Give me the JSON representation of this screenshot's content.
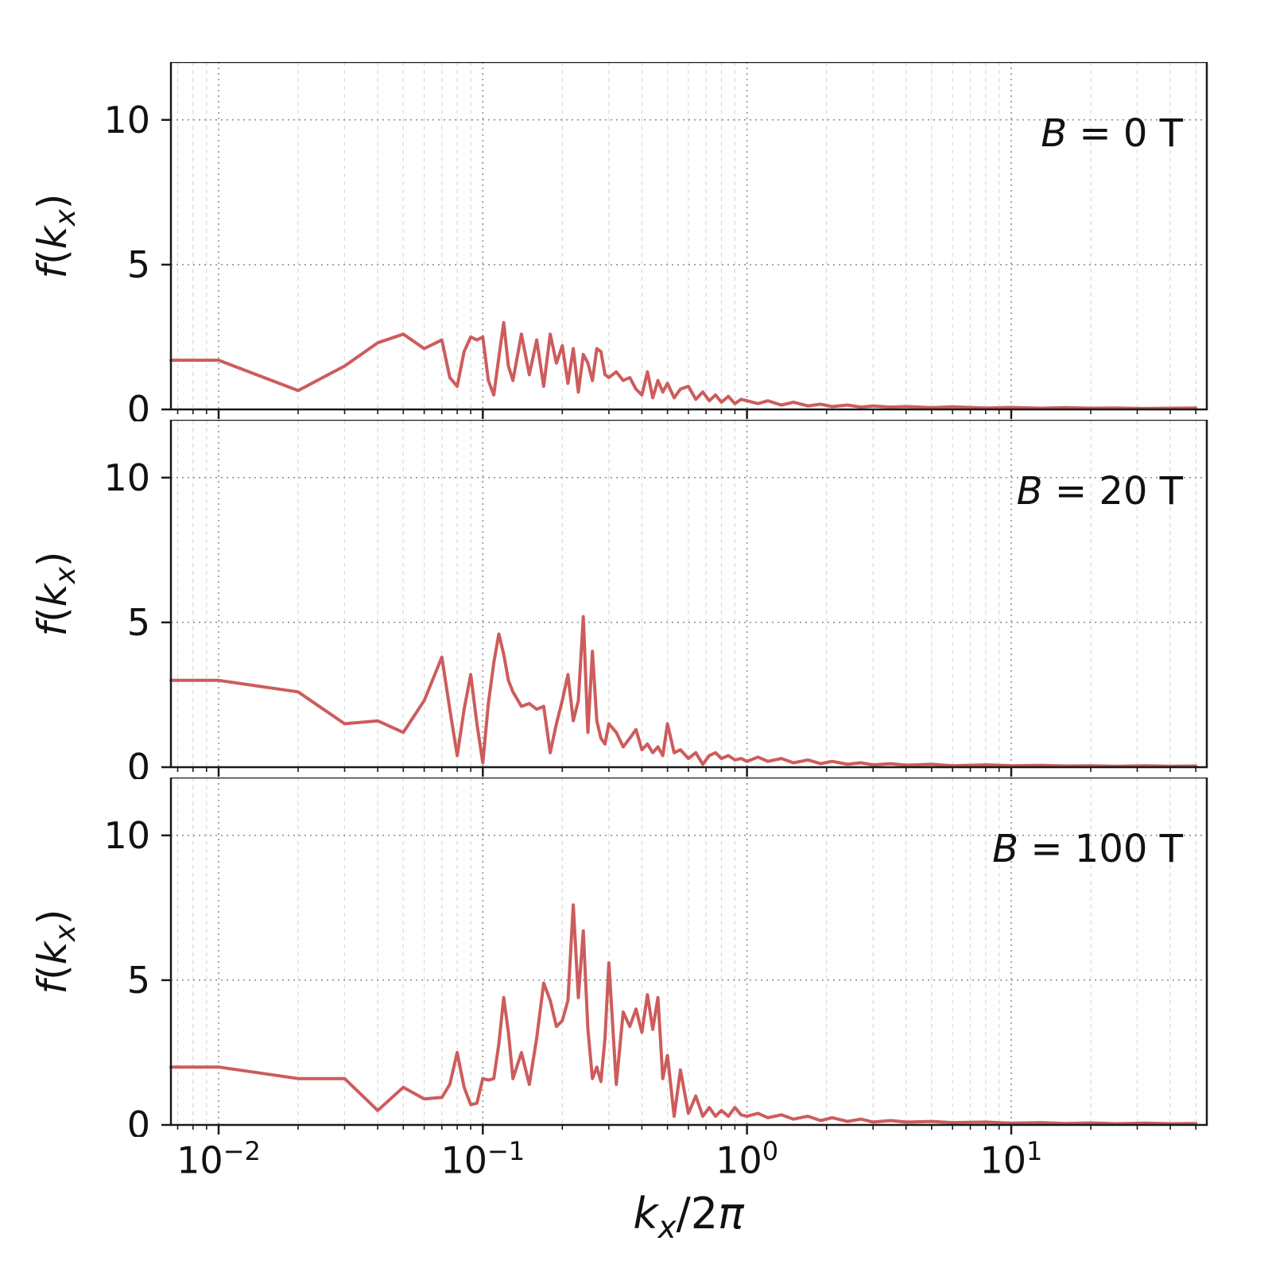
{
  "figure": {
    "background": "#ffffff"
  },
  "chart_data": {
    "type": "line",
    "title": "",
    "x_scale": "log",
    "xlim": [
      0.0066,
      55
    ],
    "ylim": [
      0,
      12
    ],
    "yticks": [
      0,
      5,
      10
    ],
    "xticks": [
      {
        "value": 0.01,
        "base": "10",
        "exp": "−2"
      },
      {
        "value": 0.1,
        "base": "10",
        "exp": "−1"
      },
      {
        "value": 1,
        "base": "10",
        "exp": "0"
      },
      {
        "value": 10,
        "base": "10",
        "exp": "1"
      }
    ],
    "xlabel_parts": {
      "k": "k",
      "sub": "x",
      "slash": "/2",
      "pi": "π"
    },
    "ylabel_parts": {
      "f": "f",
      "open": "(",
      "k": "k",
      "sub": "x",
      "close": ")"
    },
    "line_color": "#CD5C5C",
    "grid": {
      "major_color": "#8a8a8a",
      "minor_color": "#d9d9d9"
    },
    "legend": "none",
    "x": [
      0.0066,
      0.01,
      0.02,
      0.03,
      0.04,
      0.05,
      0.06,
      0.07,
      0.075,
      0.08,
      0.085,
      0.09,
      0.095,
      0.1,
      0.105,
      0.11,
      0.115,
      0.12,
      0.125,
      0.13,
      0.14,
      0.15,
      0.16,
      0.17,
      0.18,
      0.19,
      0.2,
      0.21,
      0.22,
      0.23,
      0.24,
      0.25,
      0.26,
      0.27,
      0.28,
      0.29,
      0.3,
      0.32,
      0.34,
      0.36,
      0.38,
      0.4,
      0.42,
      0.44,
      0.46,
      0.48,
      0.5,
      0.53,
      0.56,
      0.6,
      0.64,
      0.68,
      0.72,
      0.76,
      0.8,
      0.85,
      0.9,
      0.95,
      1.0,
      1.1,
      1.2,
      1.35,
      1.5,
      1.7,
      1.9,
      2.1,
      2.4,
      2.7,
      3.0,
      3.5,
      4.0,
      5.0,
      6.0,
      8.0,
      10,
      13,
      16,
      20,
      25,
      32,
      40,
      50
    ],
    "panels": [
      {
        "label_var": "B",
        "label_rest": " = 0 T",
        "y": [
          1.7,
          1.7,
          0.65,
          1.5,
          2.3,
          2.6,
          2.1,
          2.4,
          1.1,
          0.8,
          2.0,
          2.5,
          2.4,
          2.5,
          1.0,
          0.5,
          1.8,
          3.0,
          1.5,
          1.0,
          2.6,
          1.2,
          2.4,
          0.8,
          2.6,
          1.6,
          2.2,
          0.9,
          2.1,
          0.6,
          1.9,
          1.6,
          1.0,
          2.1,
          2.0,
          1.2,
          1.1,
          1.3,
          1.0,
          1.1,
          0.7,
          0.5,
          1.3,
          0.4,
          1.0,
          0.6,
          0.9,
          0.4,
          0.7,
          0.8,
          0.35,
          0.6,
          0.3,
          0.5,
          0.25,
          0.45,
          0.2,
          0.35,
          0.3,
          0.2,
          0.3,
          0.15,
          0.25,
          0.12,
          0.18,
          0.1,
          0.15,
          0.08,
          0.12,
          0.08,
          0.1,
          0.06,
          0.09,
          0.05,
          0.07,
          0.04,
          0.06,
          0.04,
          0.05,
          0.03,
          0.04,
          0.05
        ]
      },
      {
        "label_var": "B",
        "label_rest": " = 20 T",
        "y": [
          3.0,
          3.0,
          2.6,
          1.5,
          1.6,
          1.2,
          2.3,
          3.8,
          2.0,
          0.4,
          2.0,
          3.2,
          1.5,
          0.15,
          2.2,
          3.6,
          4.6,
          3.9,
          3.0,
          2.6,
          2.1,
          2.2,
          2.0,
          2.1,
          0.5,
          1.5,
          2.3,
          3.2,
          1.6,
          2.3,
          5.2,
          1.2,
          4.0,
          1.6,
          1.0,
          0.8,
          1.5,
          1.2,
          0.7,
          1.0,
          1.3,
          0.6,
          0.8,
          0.5,
          0.7,
          0.4,
          1.5,
          0.5,
          0.6,
          0.3,
          0.5,
          0.1,
          0.4,
          0.5,
          0.3,
          0.4,
          0.25,
          0.3,
          0.2,
          0.35,
          0.2,
          0.3,
          0.15,
          0.25,
          0.12,
          0.2,
          0.1,
          0.15,
          0.08,
          0.12,
          0.07,
          0.1,
          0.05,
          0.08,
          0.05,
          0.06,
          0.04,
          0.05,
          0.03,
          0.05,
          0.03,
          0.04
        ]
      },
      {
        "label_var": "B",
        "label_rest": " = 100 T",
        "y": [
          2.0,
          2.0,
          1.6,
          1.6,
          0.5,
          1.3,
          0.9,
          0.95,
          1.4,
          2.5,
          1.3,
          0.7,
          0.75,
          1.6,
          1.55,
          1.6,
          2.8,
          4.4,
          3.2,
          1.6,
          2.5,
          1.4,
          3.0,
          4.9,
          4.3,
          3.4,
          3.6,
          4.3,
          7.6,
          4.4,
          6.7,
          3.3,
          1.6,
          2.0,
          1.5,
          3.0,
          5.6,
          1.4,
          3.9,
          3.4,
          4.0,
          3.2,
          4.5,
          3.3,
          4.4,
          1.6,
          2.4,
          0.3,
          1.9,
          0.4,
          1.0,
          0.3,
          0.6,
          0.3,
          0.5,
          0.3,
          0.6,
          0.35,
          0.3,
          0.4,
          0.25,
          0.35,
          0.2,
          0.3,
          0.15,
          0.25,
          0.12,
          0.2,
          0.1,
          0.15,
          0.1,
          0.12,
          0.08,
          0.1,
          0.06,
          0.08,
          0.05,
          0.07,
          0.04,
          0.06,
          0.04,
          0.05
        ]
      }
    ]
  }
}
